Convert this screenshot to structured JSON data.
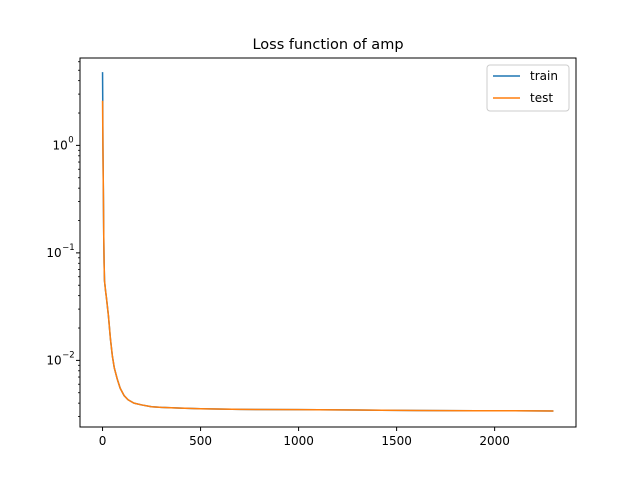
{
  "chart_data": {
    "type": "line",
    "title": "Loss function of amp",
    "xlabel": "",
    "ylabel": "",
    "yscale": "log",
    "xlim": [
      -115,
      2415
    ],
    "ylim": [
      0.0024,
      6.5
    ],
    "x_ticks": [
      0,
      500,
      1000,
      1500,
      2000
    ],
    "x_tick_labels": [
      "0",
      "500",
      "1000",
      "1500",
      "2000"
    ],
    "y_ticks": [
      0.01,
      0.1,
      1
    ],
    "y_tick_labels": [
      "10",
      "10",
      "10"
    ],
    "y_tick_exponents": [
      "−2",
      "−1",
      "0"
    ],
    "grid": false,
    "legend_position": "top-right",
    "series": [
      {
        "name": "train",
        "color": "#1f77b4",
        "points": [
          [
            0,
            4.8
          ],
          [
            1,
            2.6
          ],
          [
            2,
            1.0
          ],
          [
            4,
            0.4
          ],
          [
            6,
            0.15
          ],
          [
            8,
            0.08
          ],
          [
            10,
            0.055
          ],
          [
            15,
            0.045
          ],
          [
            20,
            0.038
          ],
          [
            30,
            0.026
          ],
          [
            40,
            0.016
          ],
          [
            50,
            0.011
          ],
          [
            60,
            0.0085
          ],
          [
            75,
            0.0067
          ],
          [
            90,
            0.0055
          ],
          [
            110,
            0.0047
          ],
          [
            130,
            0.0043
          ],
          [
            160,
            0.004
          ],
          [
            200,
            0.00385
          ],
          [
            250,
            0.0037
          ],
          [
            300,
            0.00365
          ],
          [
            400,
            0.0036
          ],
          [
            500,
            0.00355
          ],
          [
            700,
            0.0035
          ],
          [
            1000,
            0.00348
          ],
          [
            1300,
            0.00345
          ],
          [
            1600,
            0.00342
          ],
          [
            1900,
            0.0034
          ],
          [
            2100,
            0.0034
          ],
          [
            2300,
            0.00338
          ]
        ]
      },
      {
        "name": "test",
        "color": "#ff7f0e",
        "points": [
          [
            0,
            2.6
          ],
          [
            1,
            1.6
          ],
          [
            2,
            0.9
          ],
          [
            4,
            0.4
          ],
          [
            6,
            0.15
          ],
          [
            8,
            0.08
          ],
          [
            10,
            0.055
          ],
          [
            15,
            0.045
          ],
          [
            20,
            0.038
          ],
          [
            30,
            0.026
          ],
          [
            40,
            0.016
          ],
          [
            50,
            0.011
          ],
          [
            60,
            0.0085
          ],
          [
            75,
            0.0067
          ],
          [
            90,
            0.0055
          ],
          [
            110,
            0.0047
          ],
          [
            130,
            0.0043
          ],
          [
            160,
            0.004
          ],
          [
            200,
            0.00385
          ],
          [
            250,
            0.0037
          ],
          [
            300,
            0.00365
          ],
          [
            400,
            0.0036
          ],
          [
            500,
            0.00355
          ],
          [
            700,
            0.0035
          ],
          [
            1000,
            0.00348
          ],
          [
            1300,
            0.00345
          ],
          [
            1600,
            0.00342
          ],
          [
            1900,
            0.0034
          ],
          [
            2100,
            0.0034
          ],
          [
            2300,
            0.00338
          ]
        ]
      }
    ]
  }
}
